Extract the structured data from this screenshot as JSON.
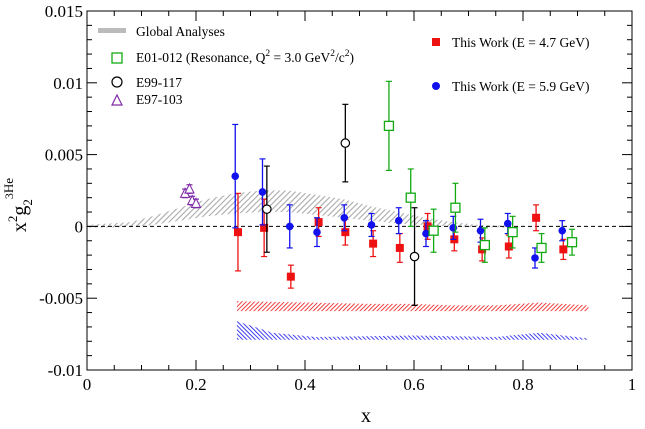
{
  "chart_data": {
    "type": "scatter",
    "xlabel": "x",
    "ylabel": {
      "main": "x",
      "sup2": "2",
      "g": "g",
      "sub2": "2",
      "sup3": "3",
      "he": "He"
    },
    "xlim": [
      0,
      1
    ],
    "ylim": [
      -0.01,
      0.015
    ],
    "x_ticks": [
      "0",
      "0.2",
      "0.4",
      "0.6",
      "0.8",
      "1"
    ],
    "x_tick_values": [
      0,
      0.2,
      0.4,
      0.6,
      0.8,
      1
    ],
    "y_ticks": [
      "-0.01",
      "-0.005",
      "0",
      "0.005",
      "0.01",
      "0.015"
    ],
    "y_tick_values": [
      -0.01,
      -0.005,
      0,
      0.005,
      0.01,
      0.015
    ],
    "zero_line": "dashed",
    "grid": false,
    "legend_left": {
      "global": "Global Analyses",
      "e01": {
        "prefix": "E01-012 (Resonance, Q",
        "sup": "2",
        "mid": " = 3.0 GeV",
        "sup2": "2",
        "suffix": "/c",
        "sup3": "2",
        "close": ")"
      },
      "e99": "E99-117",
      "e97": "E97-103"
    },
    "legend_right": {
      "red": "This Work (E = 4.7 GeV)",
      "blue": "This Work (E = 5.9 GeV)"
    },
    "colors": {
      "red": "#ee1111",
      "blue": "#1111ee",
      "green": "#11aa11",
      "purple": "#7f2aa8",
      "black": "#000000",
      "band": "#bbbbbb"
    },
    "series": [
      {
        "name": "This Work (E = 4.7 GeV)",
        "marker": "filled-square",
        "color": "red",
        "points": [
          {
            "x": 0.277,
            "y": -0.0004,
            "err": 0.0027
          },
          {
            "x": 0.325,
            "y": -0.0001,
            "err": 0.002
          },
          {
            "x": 0.374,
            "y": -0.0035,
            "err": 0.0008
          },
          {
            "x": 0.425,
            "y": 0.0003,
            "err": 0.001
          },
          {
            "x": 0.474,
            "y": -0.0004,
            "err": 0.0009
          },
          {
            "x": 0.525,
            "y": -0.0012,
            "err": 0.0009
          },
          {
            "x": 0.574,
            "y": -0.0015,
            "err": 0.001
          },
          {
            "x": 0.625,
            "y": 0.0,
            "err": 0.0009
          },
          {
            "x": 0.674,
            "y": -0.0009,
            "err": 0.0008
          },
          {
            "x": 0.725,
            "y": -0.0016,
            "err": 0.0008
          },
          {
            "x": 0.774,
            "y": -0.0014,
            "err": 0.0008
          },
          {
            "x": 0.824,
            "y": 0.0006,
            "err": 0.0009
          },
          {
            "x": 0.874,
            "y": -0.0016,
            "err": 0.0007
          }
        ]
      },
      {
        "name": "This Work (E = 5.9 GeV)",
        "marker": "filled-circle",
        "color": "blue",
        "points": [
          {
            "x": 0.272,
            "y": 0.0035,
            "err": 0.0036
          },
          {
            "x": 0.322,
            "y": 0.0024,
            "err": 0.0023
          },
          {
            "x": 0.372,
            "y": 0.0,
            "err": 0.0015
          },
          {
            "x": 0.422,
            "y": -0.0004,
            "err": 0.001
          },
          {
            "x": 0.472,
            "y": 0.0006,
            "err": 0.0009
          },
          {
            "x": 0.522,
            "y": 0.0001,
            "err": 0.0008
          },
          {
            "x": 0.572,
            "y": 0.0004,
            "err": 0.0009
          },
          {
            "x": 0.622,
            "y": -0.0005,
            "err": 0.0009
          },
          {
            "x": 0.672,
            "y": -0.0001,
            "err": 0.0008
          },
          {
            "x": 0.722,
            "y": -0.0003,
            "err": 0.0008
          },
          {
            "x": 0.772,
            "y": 0.0002,
            "err": 0.0007
          },
          {
            "x": 0.822,
            "y": -0.0022,
            "err": 0.0007
          },
          {
            "x": 0.872,
            "y": -0.0003,
            "err": 0.0007
          }
        ]
      },
      {
        "name": "E01-012 (Resonance, Q2 = 3.0 GeV2/c2)",
        "marker": "open-square",
        "color": "green",
        "points": [
          {
            "x": 0.554,
            "y": 0.007,
            "err": 0.0031
          },
          {
            "x": 0.594,
            "y": 0.002,
            "err": 0.002
          },
          {
            "x": 0.636,
            "y": -0.0003,
            "err": 0.0015
          },
          {
            "x": 0.676,
            "y": 0.0013,
            "err": 0.0017
          },
          {
            "x": 0.73,
            "y": -0.0013,
            "err": 0.0012
          },
          {
            "x": 0.781,
            "y": -0.0004,
            "err": 0.0011
          },
          {
            "x": 0.834,
            "y": -0.0015,
            "err": 0.001
          },
          {
            "x": 0.89,
            "y": -0.0011,
            "err": 0.0009
          }
        ]
      },
      {
        "name": "E99-117",
        "marker": "open-circle",
        "color": "black",
        "points": [
          {
            "x": 0.33,
            "y": 0.0012,
            "err": 0.003
          },
          {
            "x": 0.474,
            "y": 0.0058,
            "err": 0.0027
          },
          {
            "x": 0.601,
            "y": -0.0021,
            "err": 0.0034
          }
        ]
      },
      {
        "name": "E97-103",
        "marker": "open-triangle",
        "color": "purple",
        "points": [
          {
            "x": 0.18,
            "y": 0.0023,
            "err": 0.0003
          },
          {
            "x": 0.188,
            "y": 0.0026,
            "err": 0.0003
          },
          {
            "x": 0.193,
            "y": 0.0018,
            "err": 0.0003
          },
          {
            "x": 0.2,
            "y": 0.0016,
            "err": 0.0003
          }
        ]
      }
    ],
    "global_band": [
      {
        "x": 0.0,
        "lo": -0.0001,
        "hi": 0.0001
      },
      {
        "x": 0.08,
        "lo": -5e-05,
        "hi": 0.0003
      },
      {
        "x": 0.12,
        "lo": 0.0001,
        "hi": 0.0007
      },
      {
        "x": 0.17,
        "lo": 0.0004,
        "hi": 0.0013
      },
      {
        "x": 0.22,
        "lo": 0.0007,
        "hi": 0.0019
      },
      {
        "x": 0.27,
        "lo": 0.0009,
        "hi": 0.0023
      },
      {
        "x": 0.32,
        "lo": 0.001,
        "hi": 0.0025
      },
      {
        "x": 0.37,
        "lo": 0.001,
        "hi": 0.0025
      },
      {
        "x": 0.42,
        "lo": 0.0008,
        "hi": 0.0022
      },
      {
        "x": 0.47,
        "lo": 0.0006,
        "hi": 0.0019
      },
      {
        "x": 0.52,
        "lo": 0.0004,
        "hi": 0.0014
      },
      {
        "x": 0.57,
        "lo": 0.0002,
        "hi": 0.001
      },
      {
        "x": 0.62,
        "lo": 0.0001,
        "hi": 0.0006
      },
      {
        "x": 0.67,
        "lo": 0.0,
        "hi": 0.0003
      },
      {
        "x": 0.72,
        "lo": -5e-05,
        "hi": 0.0001
      },
      {
        "x": 0.77,
        "lo": -0.0001,
        "hi": 5e-05
      }
    ],
    "syst_bands": [
      {
        "series": "This Work (E = 4.7 GeV)",
        "color": "red",
        "lower": -0.0059,
        "upper": [
          {
            "x": 0.275,
            "y": -0.0052
          },
          {
            "x": 0.4,
            "y": -0.0053
          },
          {
            "x": 0.52,
            "y": -0.0054
          },
          {
            "x": 0.6,
            "y": -0.0054
          },
          {
            "x": 0.67,
            "y": -0.0055
          },
          {
            "x": 0.75,
            "y": -0.0055
          },
          {
            "x": 0.83,
            "y": -0.0053
          },
          {
            "x": 0.92,
            "y": -0.0055
          }
        ]
      },
      {
        "series": "This Work (E = 5.9 GeV)",
        "color": "blue",
        "lower": -0.0079,
        "upper": [
          {
            "x": 0.275,
            "y": -0.0066
          },
          {
            "x": 0.3,
            "y": -0.0069
          },
          {
            "x": 0.34,
            "y": -0.0074
          },
          {
            "x": 0.42,
            "y": -0.0077
          },
          {
            "x": 0.6,
            "y": -0.0076
          },
          {
            "x": 0.75,
            "y": -0.0077
          },
          {
            "x": 0.83,
            "y": -0.0074
          },
          {
            "x": 0.92,
            "y": -0.0078
          }
        ]
      }
    ]
  }
}
